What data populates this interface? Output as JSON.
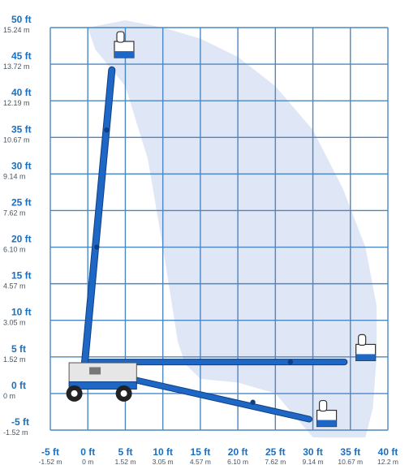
{
  "chart_data": {
    "type": "line",
    "y_ticks": [
      {
        "ft": "50 ft",
        "m": "15.24 m"
      },
      {
        "ft": "45 ft",
        "m": "13.72 m"
      },
      {
        "ft": "40 ft",
        "m": "12.19 m"
      },
      {
        "ft": "35 ft",
        "m": "10.67 m"
      },
      {
        "ft": "30 ft",
        "m": "9.14 m"
      },
      {
        "ft": "25 ft",
        "m": "7.62 m"
      },
      {
        "ft": "20 ft",
        "m": "6.10 m"
      },
      {
        "ft": "15 ft",
        "m": "4.57 m"
      },
      {
        "ft": "10 ft",
        "m": "3.05 m"
      },
      {
        "ft": "5 ft",
        "m": "1.52 m"
      },
      {
        "ft": "0 ft",
        "m": "0 m"
      },
      {
        "ft": "-5 ft",
        "m": "-1.52 m"
      }
    ],
    "x_ticks": [
      {
        "ft": "-5 ft",
        "m": "-1.52 m"
      },
      {
        "ft": "0 ft",
        "m": "0 m"
      },
      {
        "ft": "5 ft",
        "m": "1.52 m"
      },
      {
        "ft": "10 ft",
        "m": "3.05 m"
      },
      {
        "ft": "15 ft",
        "m": "4.57 m"
      },
      {
        "ft": "20 ft",
        "m": "6.10 m"
      },
      {
        "ft": "25 ft",
        "m": "7.62 m"
      },
      {
        "ft": "30 ft",
        "m": "9.14 m"
      },
      {
        "ft": "35 ft",
        "m": "10.67 m"
      },
      {
        "ft": "40 ft",
        "m": "12.2 m"
      }
    ],
    "xlim": [
      -5,
      40
    ],
    "ylim": [
      -5,
      50
    ],
    "grid": true,
    "work_envelope": [
      [
        0,
        50
      ],
      [
        5,
        51
      ],
      [
        10,
        50
      ],
      [
        15,
        48.5
      ],
      [
        20,
        46
      ],
      [
        25,
        42
      ],
      [
        30,
        36
      ],
      [
        34,
        28
      ],
      [
        37,
        20
      ],
      [
        38.5,
        12
      ],
      [
        38.5,
        5
      ],
      [
        38,
        -2
      ],
      [
        37,
        -6
      ],
      [
        30,
        -6
      ],
      [
        25,
        0
      ],
      [
        20,
        1.5
      ],
      [
        15,
        2
      ],
      [
        13,
        4
      ],
      [
        12,
        7
      ],
      [
        10,
        20
      ],
      [
        8,
        32
      ],
      [
        5,
        42
      ],
      [
        1,
        47
      ],
      [
        0,
        50
      ]
    ],
    "booms": {
      "vertical": [
        [
          -0.4,
          4.3
        ],
        [
          3.2,
          44.2
        ]
      ],
      "horizontal": [
        [
          -0.4,
          4.3
        ],
        [
          34.2,
          4.3
        ]
      ],
      "below": [
        [
          3.5,
          2.5
        ],
        [
          29.5,
          -3.5
        ]
      ]
    },
    "colors": {
      "axis_label": "#1a6fc0",
      "metric_label": "#4a5560",
      "grid": "#4c87c3",
      "envelope": "#dfe6f6",
      "boom": "#1f67c4",
      "boom_dark": "#0e3f86"
    }
  }
}
